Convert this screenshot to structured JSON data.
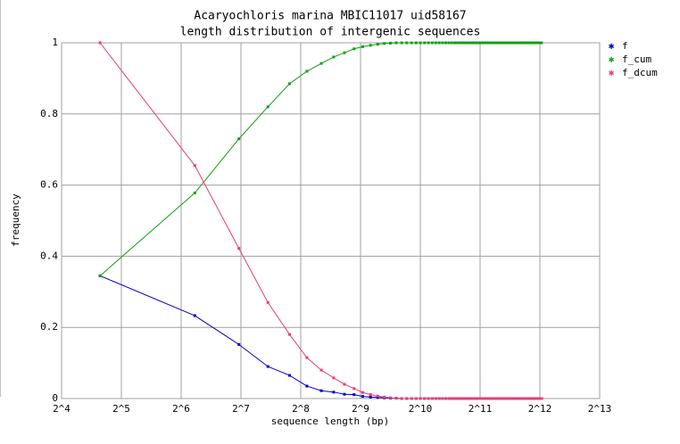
{
  "chart_data": {
    "type": "line",
    "title": "Acaryochloris marina MBIC11017 uid58167",
    "subtitle": "length distribution of intergenic sequences",
    "xlabel": "sequence length (bp)",
    "ylabel": "frequency",
    "xscale": "log2",
    "xlim": [
      16,
      8192
    ],
    "xticks": [
      {
        "value": 16,
        "label": "2^4"
      },
      {
        "value": 32,
        "label": "2^5"
      },
      {
        "value": 64,
        "label": "2^6"
      },
      {
        "value": 128,
        "label": "2^7"
      },
      {
        "value": 256,
        "label": "2^8"
      },
      {
        "value": 512,
        "label": "2^9"
      },
      {
        "value": 1024,
        "label": "2^10"
      },
      {
        "value": 2048,
        "label": "2^11"
      },
      {
        "value": 4096,
        "label": "2^12"
      },
      {
        "value": 8192,
        "label": "2^13"
      }
    ],
    "ylim": [
      0,
      1
    ],
    "yticks": [
      0,
      0.2,
      0.4,
      0.6,
      0.8,
      1
    ],
    "grid": true,
    "legend": "top-right",
    "x": [
      25,
      75,
      125,
      175,
      225,
      275,
      325,
      375,
      425,
      475,
      525,
      575,
      625,
      675,
      725,
      775,
      825,
      875,
      925,
      975,
      1025,
      1075,
      1125,
      1175,
      1225,
      1275,
      1325,
      1375,
      1425,
      1475,
      1525,
      1575,
      1625,
      1675,
      1725,
      1775,
      1825,
      1875,
      1925,
      1975,
      2025,
      2075,
      2125,
      2175,
      2225,
      2275,
      2325,
      2375,
      2425,
      2475,
      2525,
      2575,
      2625,
      2675,
      2725,
      2775,
      2825,
      2875,
      2925,
      2975,
      3025,
      3075,
      3125,
      3175,
      3225,
      3275,
      3325,
      3375,
      3425,
      3475,
      3525,
      3575,
      3625,
      3675,
      3725,
      3775,
      3825,
      3875,
      3925,
      3975,
      4025,
      4075,
      4125,
      4175
    ],
    "series": [
      {
        "name": "f",
        "color": "#0000c8",
        "values": [
          0.345,
          0.233,
          0.152,
          0.09,
          0.065,
          0.035,
          0.022,
          0.018,
          0.012,
          0.011,
          0.006,
          0.004,
          0.003,
          0.002,
          0.001,
          0.001,
          0,
          0,
          0,
          0,
          0,
          0,
          0,
          0,
          0,
          0,
          0,
          0,
          0,
          0,
          0,
          0,
          0,
          0,
          0,
          0,
          0,
          0,
          0,
          0,
          0,
          0,
          0,
          0,
          0,
          0,
          0,
          0,
          0,
          0,
          0,
          0,
          0,
          0,
          0,
          0,
          0,
          0,
          0,
          0,
          0,
          0,
          0,
          0,
          0,
          0,
          0,
          0,
          0,
          0,
          0,
          0,
          0,
          0,
          0,
          0,
          0,
          0,
          0,
          0,
          0,
          0,
          0,
          0
        ]
      },
      {
        "name": "f_cum",
        "color": "#10a010",
        "values": [
          0.345,
          0.578,
          0.73,
          0.82,
          0.885,
          0.92,
          0.942,
          0.96,
          0.972,
          0.983,
          0.989,
          0.993,
          0.996,
          0.998,
          0.999,
          1,
          1,
          1,
          1,
          1,
          1,
          1,
          1,
          1,
          1,
          1,
          1,
          1,
          1,
          1,
          1,
          1,
          1,
          1,
          1,
          1,
          1,
          1,
          1,
          1,
          1,
          1,
          1,
          1,
          1,
          1,
          1,
          1,
          1,
          1,
          1,
          1,
          1,
          1,
          1,
          1,
          1,
          1,
          1,
          1,
          1,
          1,
          1,
          1,
          1,
          1,
          1,
          1,
          1,
          1,
          1,
          1,
          1,
          1,
          1,
          1,
          1,
          1,
          1,
          1,
          1,
          1,
          1,
          1
        ]
      },
      {
        "name": "f_dcum",
        "color": "#e83c78",
        "values": [
          1,
          0.655,
          0.422,
          0.27,
          0.18,
          0.115,
          0.08,
          0.058,
          0.04,
          0.028,
          0.017,
          0.011,
          0.007,
          0.004,
          0.002,
          0.001,
          0,
          0,
          0,
          0,
          0,
          0,
          0,
          0,
          0,
          0,
          0,
          0,
          0,
          0,
          0,
          0,
          0,
          0,
          0,
          0,
          0,
          0,
          0,
          0,
          0,
          0,
          0,
          0,
          0,
          0,
          0,
          0,
          0,
          0,
          0,
          0,
          0,
          0,
          0,
          0,
          0,
          0,
          0,
          0,
          0,
          0,
          0,
          0,
          0,
          0,
          0,
          0,
          0,
          0,
          0,
          0,
          0,
          0,
          0,
          0,
          0,
          0,
          0,
          0,
          0,
          0,
          0,
          0
        ]
      }
    ]
  }
}
